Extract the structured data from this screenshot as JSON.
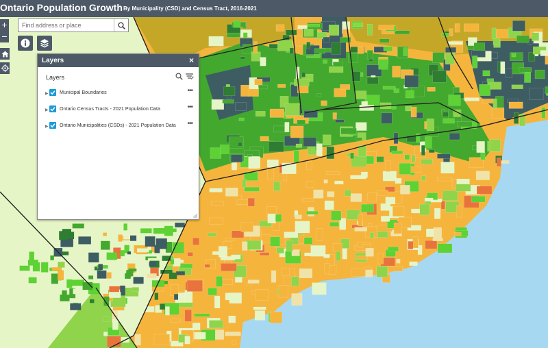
{
  "header": {
    "title": "Ontario Population Growth",
    "subtitle": "By Municipality (CSD) and Census Tract, 2016-2021"
  },
  "zoom": {
    "in_label": "+",
    "out_label": "−"
  },
  "search": {
    "placeholder": "Find address or place",
    "value": "",
    "icon": "search-icon"
  },
  "tools": [
    {
      "name": "info-icon"
    },
    {
      "name": "layers-icon"
    },
    {
      "name": "home-icon"
    },
    {
      "name": "locate-icon"
    }
  ],
  "layers_panel": {
    "title": "Layers",
    "close_label": "×",
    "section_label": "Layers",
    "more_label": "•••",
    "items": [
      {
        "name": "Municipal Boundaries",
        "checked": true
      },
      {
        "name": "Ontario Census Tracts - 2021 Population Data",
        "checked": true
      },
      {
        "name": "Ontario Municipalities (CSDs) - 2021 Population Data",
        "checked": true
      }
    ]
  },
  "map_colors": {
    "water": "#a7d8f2",
    "decline": "#e8743b",
    "low_growth": "#f5b53d",
    "stable": "#efe3a8",
    "pale_growth": "#e6f5c6",
    "light_green": "#8fd44a",
    "bright_green": "#5ed134",
    "green": "#43a82e",
    "dark_green": "#2e7d32",
    "high_growth": "#3d5d63",
    "olive": "#c4a727"
  }
}
